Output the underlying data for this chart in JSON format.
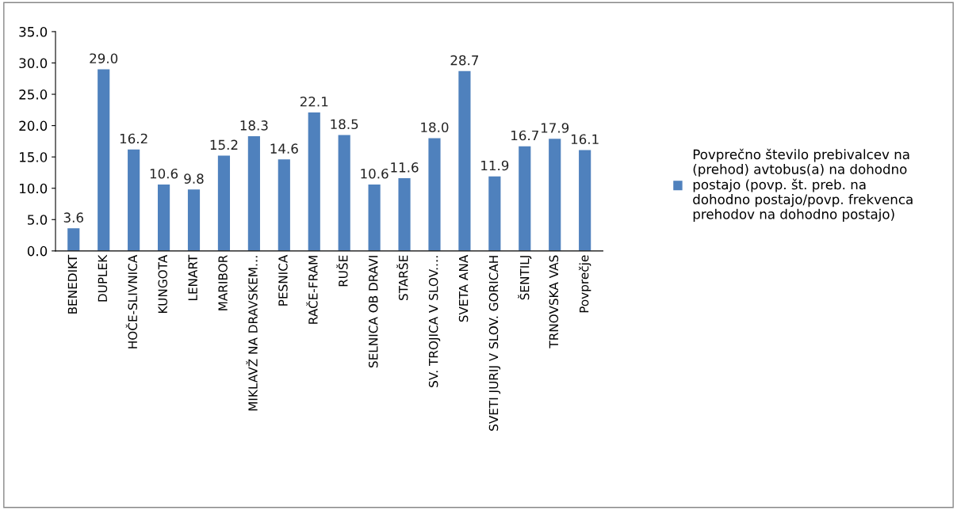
{
  "chart_data": {
    "type": "bar",
    "categories": [
      "BENEDIKT",
      "DUPLEK",
      "HOČE-SLIVNICA",
      "KUNGOTA",
      "LENART",
      "MARIBOR",
      "MIKLAVŽ NA DRAVSKEM…",
      "PESNICA",
      "RAČE-FRAM",
      "RUŠE",
      "SELNICA OB DRAVI",
      "STARŠE",
      "SV. TROJICA V SLOV.…",
      "SVETA ANA",
      "SVETI JURIJ V SLOV. GORICAH",
      "ŠENTILJ",
      "TRNOVSKA VAS",
      "Povprečje"
    ],
    "series": [
      {
        "name": "Povprečno število prebivalcev na\n(prehod) avtobus(a) na dohodno\npostajo (povp. št. preb. na\ndohodno postajo/povp. frekvenca\nprehodov na dohodno postajo)",
        "color": "#4f81bd",
        "values": [
          3.6,
          29.0,
          16.2,
          10.6,
          9.8,
          15.2,
          18.3,
          14.6,
          22.1,
          18.5,
          10.6,
          11.6,
          18.0,
          28.7,
          11.9,
          16.7,
          17.9,
          16.1
        ],
        "value_labels": [
          "3.6",
          "29.0",
          "16.2",
          "10.6",
          "9.8",
          "15.2",
          "18.3",
          "14.6",
          "22.1",
          "18.5",
          "10.6",
          "11.6",
          "18.0",
          "28.7",
          "11.9",
          "16.7",
          "17.9",
          "16.1"
        ]
      }
    ],
    "ylim": [
      0,
      35
    ],
    "yticks": [
      {
        "value": 0,
        "label": "0.0"
      },
      {
        "value": 5,
        "label": "5.0"
      },
      {
        "value": 10,
        "label": "10.0"
      },
      {
        "value": 15,
        "label": "15.0"
      },
      {
        "value": 20,
        "label": "20.0"
      },
      {
        "value": 25,
        "label": "25.0"
      },
      {
        "value": 30,
        "label": "30.0"
      },
      {
        "value": 35,
        "label": "35.0"
      }
    ],
    "grid": false,
    "legend": "right"
  }
}
